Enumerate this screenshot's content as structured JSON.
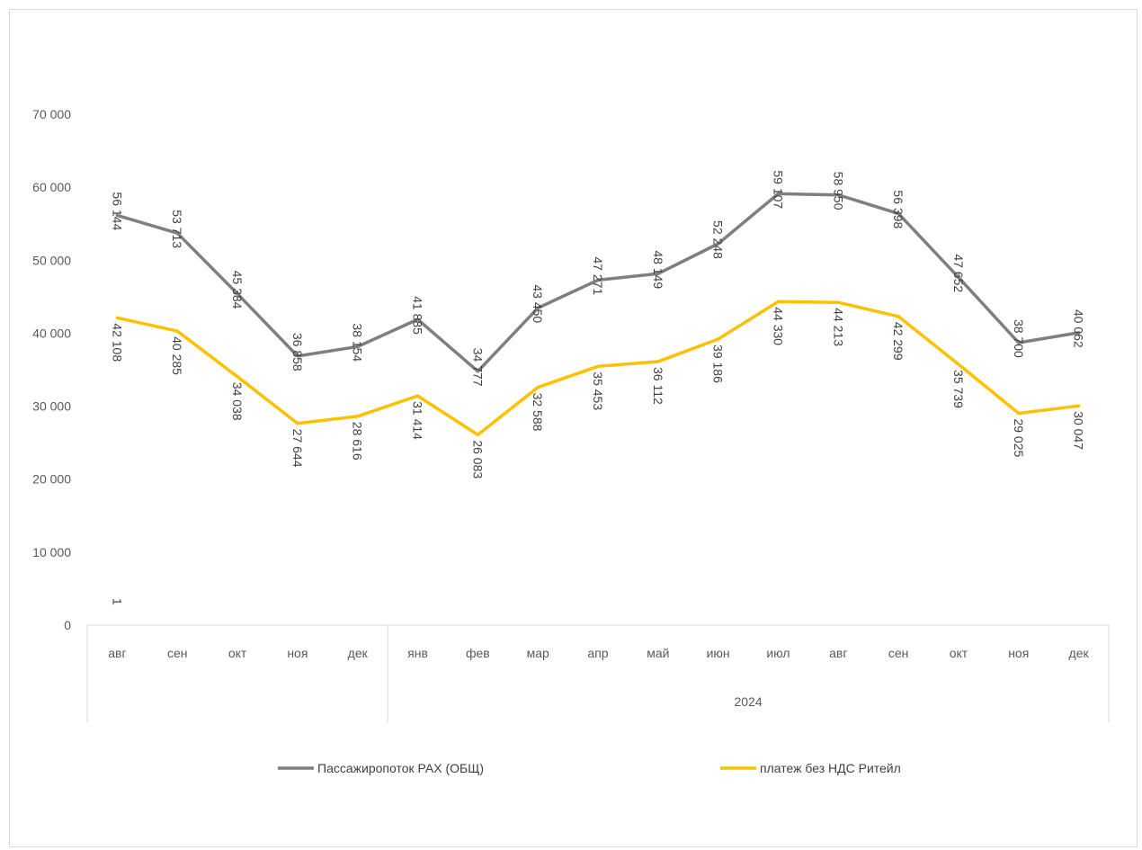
{
  "chart_data": {
    "type": "line",
    "categories": [
      "авг",
      "сен",
      "окт",
      "ноя",
      "дек",
      "янв",
      "фев",
      "мар",
      "апр",
      "май",
      "июн",
      "июл",
      "авг",
      "сен",
      "окт",
      "ноя",
      "дек"
    ],
    "group_labels": [
      "",
      "2024"
    ],
    "y_ticks": [
      "0",
      "10 000",
      "20 000",
      "30 000",
      "40 000",
      "50 000",
      "60 000",
      "70 000"
    ],
    "ylim": [
      0,
      70000
    ],
    "stray_label": "1",
    "grid": false,
    "legend_position": "bottom",
    "series": [
      {
        "name": "Пассажиропоток РАХ (ОБЩ)",
        "color": "#7f7f7f",
        "values": [
          56144,
          53713,
          45384,
          36858,
          38154,
          41885,
          34777,
          43450,
          47271,
          48149,
          52248,
          59107,
          58950,
          56398,
          47652,
          38700,
          40062
        ],
        "labels": [
          "56 144",
          "53 713",
          "45 384",
          "36 858",
          "38 154",
          "41 885",
          "34 777",
          "43 450",
          "47 271",
          "48 149",
          "52 248",
          "59 107",
          "58 950",
          "56 398",
          "47 652",
          "38 700",
          "40 062"
        ]
      },
      {
        "name": "платеж без НДС Ритейл",
        "color": "#ffc000",
        "values": [
          42108,
          40285,
          34038,
          27644,
          28616,
          31414,
          26083,
          32588,
          35453,
          36112,
          39186,
          44330,
          44213,
          42299,
          35739,
          29025,
          30047
        ],
        "labels": [
          "42 108",
          "40 285",
          "34 038",
          "27 644",
          "28 616",
          "31 414",
          "26 083",
          "32 588",
          "35 453",
          "36 112",
          "39 186",
          "44 330",
          "44 213",
          "42 299",
          "35 739",
          "29 025",
          "30 047"
        ]
      }
    ]
  }
}
